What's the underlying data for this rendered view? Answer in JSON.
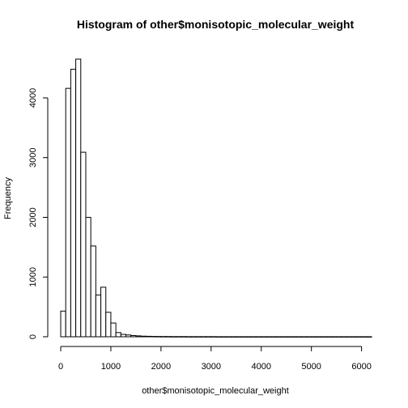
{
  "chart_data": {
    "type": "bar",
    "title": "Histogram of other$monisotopic_molecular_weight",
    "xlabel": "other$monisotopic_molecular_weight",
    "ylabel": "Frequency",
    "bin_width": 100,
    "bin_start": 0,
    "values": [
      430,
      4160,
      4480,
      4650,
      3090,
      2000,
      1520,
      700,
      830,
      410,
      230,
      70,
      40,
      30,
      20,
      15,
      10,
      8,
      6,
      5,
      4,
      4,
      3,
      3,
      3,
      2,
      2,
      2,
      2,
      2,
      2,
      1,
      1,
      1,
      1,
      1,
      1,
      1,
      1,
      1,
      1,
      1,
      1,
      1,
      1,
      1,
      1,
      1,
      1,
      1,
      1,
      1,
      1,
      1,
      1,
      1,
      1,
      1,
      1,
      1,
      1,
      1
    ],
    "xlim": [
      0,
      6200
    ],
    "ylim": [
      0,
      4650
    ],
    "x_ticks": [
      "0",
      "1000",
      "2000",
      "3000",
      "4000",
      "5000",
      "6000"
    ],
    "y_ticks": [
      "0",
      "1000",
      "2000",
      "3000",
      "4000"
    ],
    "grid": false
  }
}
